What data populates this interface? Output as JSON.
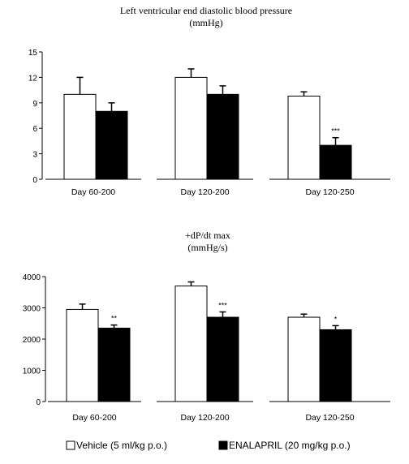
{
  "chart_data": [
    {
      "type": "bar",
      "title": "Left ventricular end diastolic blood pressure",
      "subtitle": "(mmHg)",
      "ylim": [
        0,
        15
      ],
      "yticks": [
        0,
        3,
        6,
        9,
        12,
        15
      ],
      "panels": [
        {
          "label": "Day 60-200",
          "series": [
            {
              "name": "Vehicle (5 ml/kg p.o.)",
              "value": 10,
              "error": 2,
              "annotation": ""
            },
            {
              "name": "ENALAPRIL (20 mg/kg p.o.)",
              "value": 8,
              "error": 1,
              "annotation": ""
            }
          ]
        },
        {
          "label": "Day 120-200",
          "series": [
            {
              "name": "Vehicle (5 ml/kg p.o.)",
              "value": 12,
              "error": 1,
              "annotation": ""
            },
            {
              "name": "ENALAPRIL (20 mg/kg p.o.)",
              "value": 10,
              "error": 1,
              "annotation": ""
            }
          ]
        },
        {
          "label": "Day 120-250",
          "series": [
            {
              "name": "Vehicle (5 ml/kg p.o.)",
              "value": 9.8,
              "error": 0.5,
              "annotation": ""
            },
            {
              "name": "ENALAPRIL (20 mg/kg p.o.)",
              "value": 4,
              "error": 0.9,
              "annotation": "***"
            }
          ]
        }
      ]
    },
    {
      "type": "bar",
      "title": "+dP/dt max",
      "subtitle": "(mmHg/s)",
      "ylim": [
        0,
        4000
      ],
      "yticks": [
        0,
        1000,
        2000,
        3000,
        4000
      ],
      "panels": [
        {
          "label": "Day 60-200",
          "series": [
            {
              "name": "Vehicle (5 ml/kg p.o.)",
              "value": 2950,
              "error": 170,
              "annotation": ""
            },
            {
              "name": "ENALAPRIL (20 mg/kg p.o.)",
              "value": 2350,
              "error": 100,
              "annotation": "**"
            }
          ]
        },
        {
          "label": "Day 120-200",
          "series": [
            {
              "name": "Vehicle (5 ml/kg p.o.)",
              "value": 3700,
              "error": 130,
              "annotation": ""
            },
            {
              "name": "ENALAPRIL (20 mg/kg p.o.)",
              "value": 2700,
              "error": 170,
              "annotation": "***"
            }
          ]
        },
        {
          "label": "Day 120-250",
          "series": [
            {
              "name": "Vehicle (5 ml/kg p.o.)",
              "value": 2700,
              "error": 100,
              "annotation": ""
            },
            {
              "name": "ENALAPRIL (20 mg/kg p.o.)",
              "value": 2300,
              "error": 130,
              "annotation": "*"
            }
          ]
        }
      ]
    }
  ],
  "legend": [
    {
      "label": "Vehicle (5 ml/kg p.o.)",
      "fill": "#ffffff"
    },
    {
      "label": "ENALAPRIL (20 mg/kg p.o.)",
      "fill": "#000000"
    }
  ],
  "colors": {
    "vehicle": "#ffffff",
    "enalapril": "#000000",
    "stroke": "#000000"
  }
}
